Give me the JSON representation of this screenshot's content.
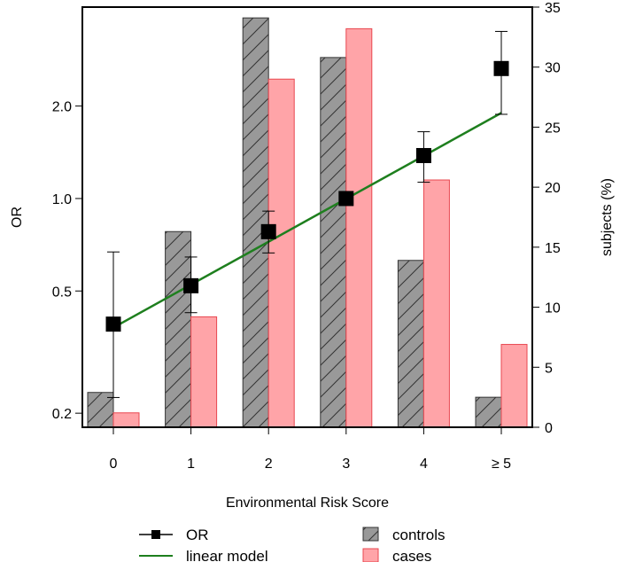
{
  "chart_data": {
    "type": "bar",
    "xlabel": "Environmental Risk Score",
    "ylabel_left": "OR",
    "ylabel_right": "subjects (%)",
    "categories": [
      "0",
      "1",
      "2",
      "3",
      "4",
      "≥ 5"
    ],
    "left_axis": {
      "scale": "log",
      "ticks": [
        "0.2",
        "0.5",
        "1.0",
        "2.0"
      ],
      "tick_values": [
        0.2,
        0.5,
        1.0,
        2.0
      ],
      "range": [
        0.18,
        4.2
      ]
    },
    "right_axis": {
      "scale": "linear",
      "ticks": [
        "0",
        "5",
        "10",
        "15",
        "20",
        "25",
        "30",
        "35"
      ],
      "tick_values": [
        0,
        5,
        10,
        15,
        20,
        25,
        30,
        35
      ],
      "range": [
        0,
        35
      ]
    },
    "series": [
      {
        "name": "controls",
        "kind": "bar",
        "axis": "right",
        "color": "#999999",
        "hatch": true,
        "values": [
          2.9,
          16.3,
          34.1,
          30.8,
          13.9,
          2.5
        ]
      },
      {
        "name": "cases",
        "kind": "bar",
        "axis": "right",
        "color": "#ffa4a8",
        "edge": "#e8474f",
        "values": [
          1.2,
          9.2,
          29.0,
          33.2,
          20.6,
          6.9
        ]
      },
      {
        "name": "OR",
        "kind": "point",
        "axis": "left",
        "color": "#000000",
        "values": [
          0.39,
          0.52,
          0.78,
          1.0,
          1.38,
          2.65
        ],
        "ci_low": [
          0.225,
          0.425,
          0.665,
          1.0,
          1.13,
          1.88
        ],
        "ci_high": [
          0.67,
          0.645,
          0.91,
          1.0,
          1.65,
          3.5
        ]
      },
      {
        "name": "linear model",
        "kind": "line",
        "axis": "left",
        "color": "#1e7f1e",
        "start": 0.38,
        "end": 1.9
      }
    ],
    "grid": false,
    "legend_position": "bottom"
  }
}
